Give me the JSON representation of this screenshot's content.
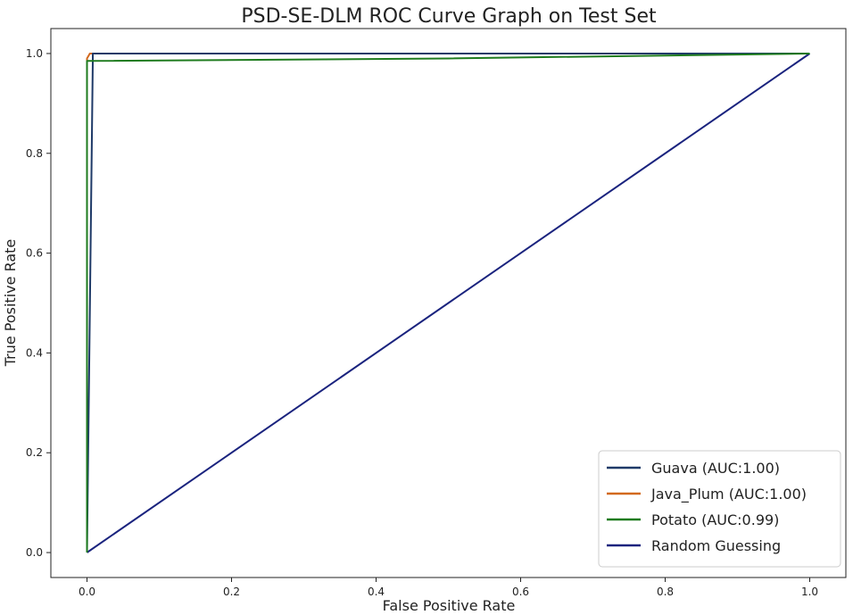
{
  "chart_data": {
    "type": "line",
    "title": "PSD-SE-DLM ROC Curve Graph on Test Set",
    "xlabel": "False Positive Rate",
    "ylabel": "True Positive Rate",
    "xlim": [
      -0.05,
      1.05
    ],
    "ylim": [
      -0.05,
      1.05
    ],
    "xticks": [
      0.0,
      0.2,
      0.4,
      0.6,
      0.8,
      1.0
    ],
    "yticks": [
      0.0,
      0.2,
      0.4,
      0.6,
      0.8,
      1.0
    ],
    "xtick_labels": [
      "0.0",
      "0.2",
      "0.4",
      "0.6",
      "0.8",
      "1.0"
    ],
    "ytick_labels": [
      "0.0",
      "0.2",
      "0.4",
      "0.6",
      "0.8",
      "1.0"
    ],
    "grid": false,
    "legend_position": "bottom-right",
    "series": [
      {
        "name": "Guava (AUC:1.00)",
        "color": "#1f3a68",
        "points": [
          [
            0.0,
            0.0
          ],
          [
            0.008,
            0.985
          ],
          [
            0.008,
            1.0
          ],
          [
            1.0,
            1.0
          ]
        ]
      },
      {
        "name": "Java_Plum (AUC:1.00)",
        "color": "#d2691e",
        "points": [
          [
            0.0,
            0.0
          ],
          [
            0.0,
            0.99
          ],
          [
            0.004,
            1.0
          ],
          [
            1.0,
            1.0
          ]
        ]
      },
      {
        "name": "Potato (AUC:0.99)",
        "color": "#1e7b1e",
        "points": [
          [
            0.0,
            0.0
          ],
          [
            0.0,
            0.985
          ],
          [
            0.5,
            0.99
          ],
          [
            1.0,
            1.0
          ]
        ]
      },
      {
        "name": "Random Guessing",
        "color": "#1a237e",
        "points": [
          [
            0.0,
            0.0
          ],
          [
            1.0,
            1.0
          ]
        ]
      }
    ]
  }
}
